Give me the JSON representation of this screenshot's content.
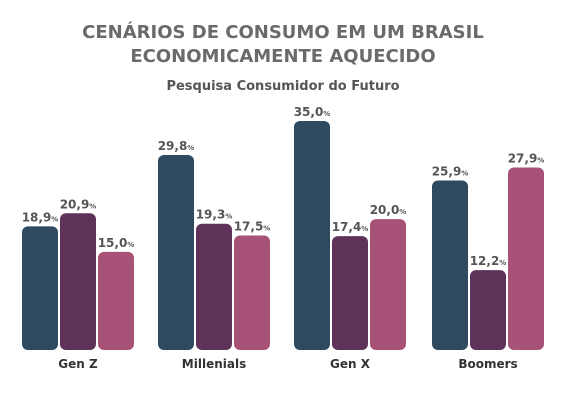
{
  "chart_data": {
    "type": "bar",
    "title": "CENÁRIOS DE CONSUMO EM UM BRASIL ECONOMICAMENTE AQUECIDO",
    "title_lines": [
      "CENÁRIOS DE CONSUMO EM UM BRASIL",
      "ECONOMICAMENTE AQUECIDO"
    ],
    "subtitle": "Pesquisa Consumidor do Futuro",
    "categories": [
      "Gen Z",
      "Millenials",
      "Gen X",
      "Boomers"
    ],
    "value_unit": "%",
    "series": [
      {
        "color": "#2f4a5f",
        "values": [
          18.9,
          29.8,
          35.0,
          25.9
        ],
        "labels": [
          "18,9",
          "29,8",
          "35,0",
          "25,9"
        ]
      },
      {
        "color": "#5e3259",
        "values": [
          20.9,
          19.3,
          17.4,
          12.2
        ],
        "labels": [
          "20,9",
          "19,3",
          "17,4",
          "12,2"
        ]
      },
      {
        "color": "#a85277",
        "values": [
          15.0,
          17.5,
          20.0,
          27.9
        ],
        "labels": [
          "15,0",
          "17,5",
          "20,0",
          "27,9"
        ]
      }
    ],
    "ylim": [
      0,
      35
    ],
    "grid": false,
    "legend": "none"
  }
}
